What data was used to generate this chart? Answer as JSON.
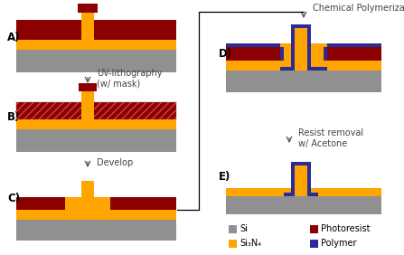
{
  "colors": {
    "si": "#909090",
    "si3n4": "#FFA500",
    "photoresist": "#8B0000",
    "polymer": "#2B2B9A",
    "bg": "#ffffff"
  },
  "legend": {
    "si_label": "Si",
    "si3n4_label": "Si₃N₄",
    "photoresist_label": "Photoresist",
    "polymer_label": "Polymer"
  },
  "labels": {
    "A": "A)",
    "B": "B)",
    "C": "C)",
    "D": "D)",
    "E": "E)",
    "arrow1": "UV-lithography\n(w/ mask)",
    "arrow2": "Develop",
    "arrow3": "Chemical Polymerization",
    "arrow4": "Resist removal\nw/ Acetone"
  }
}
